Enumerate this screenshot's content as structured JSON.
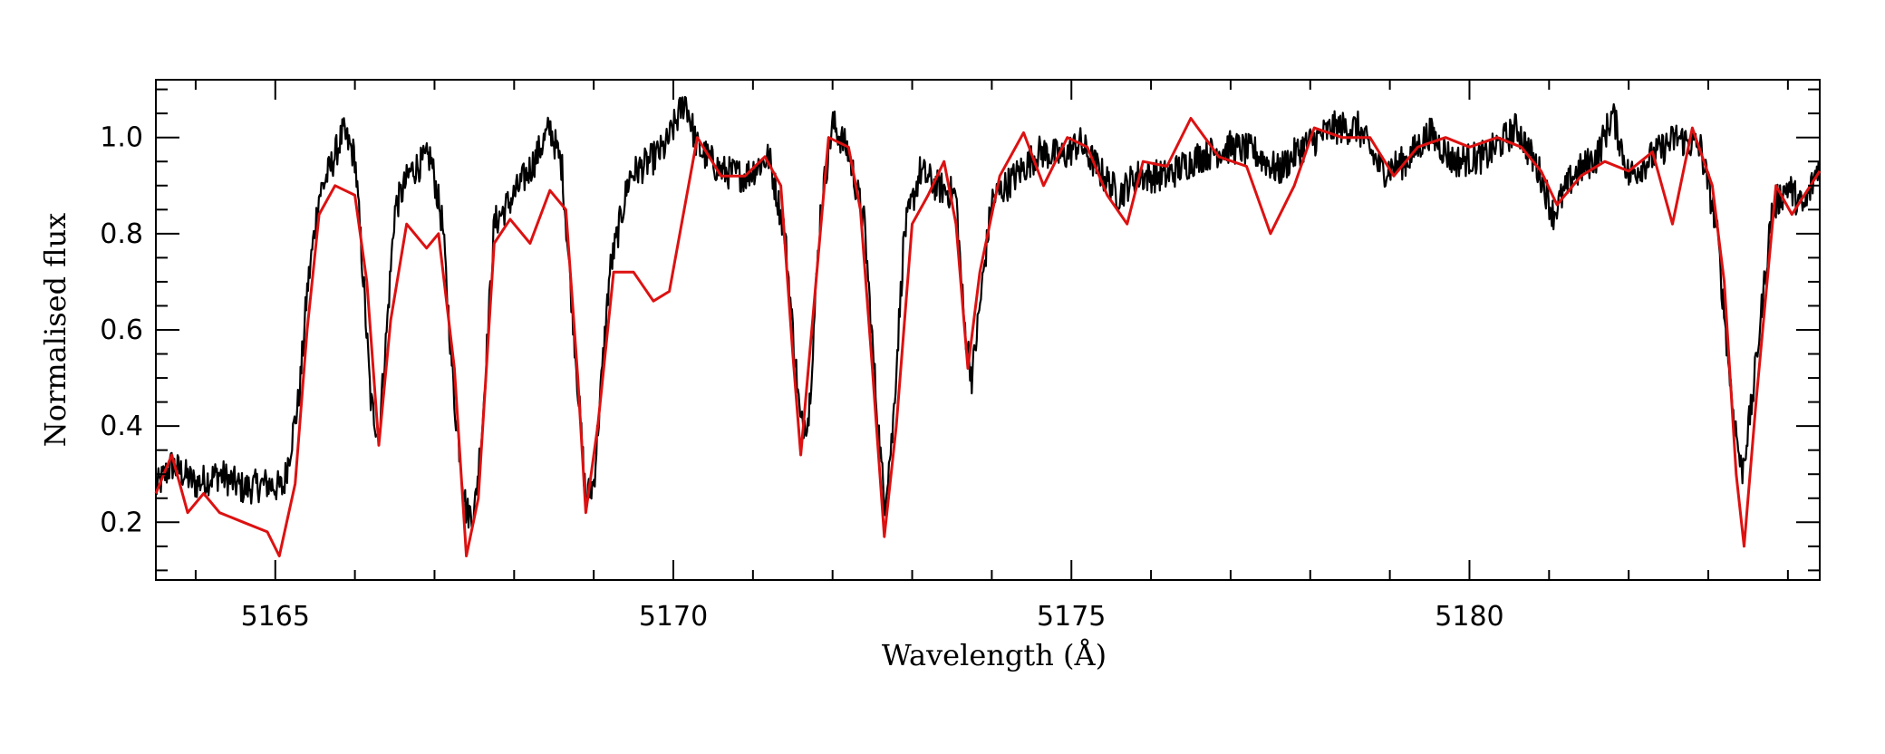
{
  "chart_data": {
    "type": "line",
    "xlabel": "Wavelength (Å)",
    "ylabel": "Normalised flux",
    "xlim": [
      5163.5,
      5184.4
    ],
    "ylim": [
      0.08,
      1.12
    ],
    "x_ticks": [
      5165,
      5170,
      5175,
      5180
    ],
    "y_ticks": [
      0.2,
      0.4,
      0.6,
      0.8,
      1.0
    ],
    "x_tick_labels": [
      "5165",
      "5170",
      "5175",
      "5180"
    ],
    "y_tick_labels": [
      "0.2",
      "0.4",
      "0.6",
      "0.8",
      "1.0"
    ],
    "grid": false,
    "legend": "none",
    "series": [
      {
        "color": "#000000",
        "noise": 0.035,
        "points": [
          [
            5163.5,
            0.27
          ],
          [
            5163.7,
            0.32
          ],
          [
            5164.0,
            0.28
          ],
          [
            5164.3,
            0.3
          ],
          [
            5164.6,
            0.27
          ],
          [
            5164.9,
            0.28
          ],
          [
            5165.1,
            0.27
          ],
          [
            5165.3,
            0.46
          ],
          [
            5165.4,
            0.68
          ],
          [
            5165.55,
            0.88
          ],
          [
            5165.7,
            0.94
          ],
          [
            5165.85,
            1.01
          ],
          [
            5166.0,
            0.96
          ],
          [
            5166.1,
            0.72
          ],
          [
            5166.2,
            0.45
          ],
          [
            5166.3,
            0.38
          ],
          [
            5166.4,
            0.6
          ],
          [
            5166.5,
            0.85
          ],
          [
            5166.7,
            0.93
          ],
          [
            5166.95,
            0.96
          ],
          [
            5167.1,
            0.82
          ],
          [
            5167.25,
            0.45
          ],
          [
            5167.4,
            0.22
          ],
          [
            5167.5,
            0.22
          ],
          [
            5167.6,
            0.4
          ],
          [
            5167.75,
            0.82
          ],
          [
            5168.0,
            0.88
          ],
          [
            5168.25,
            0.95
          ],
          [
            5168.45,
            1.02
          ],
          [
            5168.6,
            0.94
          ],
          [
            5168.75,
            0.6
          ],
          [
            5168.9,
            0.25
          ],
          [
            5169.0,
            0.28
          ],
          [
            5169.2,
            0.72
          ],
          [
            5169.45,
            0.92
          ],
          [
            5169.7,
            0.95
          ],
          [
            5169.9,
            0.98
          ],
          [
            5170.15,
            1.08
          ],
          [
            5170.3,
            0.98
          ],
          [
            5170.6,
            0.93
          ],
          [
            5170.9,
            0.92
          ],
          [
            5171.2,
            0.96
          ],
          [
            5171.4,
            0.8
          ],
          [
            5171.6,
            0.4
          ],
          [
            5171.7,
            0.42
          ],
          [
            5171.85,
            0.85
          ],
          [
            5172.0,
            1.03
          ],
          [
            5172.2,
            0.97
          ],
          [
            5172.4,
            0.82
          ],
          [
            5172.55,
            0.45
          ],
          [
            5172.65,
            0.24
          ],
          [
            5172.75,
            0.38
          ],
          [
            5172.9,
            0.8
          ],
          [
            5173.1,
            0.93
          ],
          [
            5173.3,
            0.9
          ],
          [
            5173.55,
            0.88
          ],
          [
            5173.65,
            0.62
          ],
          [
            5173.75,
            0.5
          ],
          [
            5173.85,
            0.65
          ],
          [
            5174.0,
            0.87
          ],
          [
            5174.3,
            0.92
          ],
          [
            5174.6,
            0.97
          ],
          [
            5174.9,
            0.96
          ],
          [
            5175.1,
            0.99
          ],
          [
            5175.4,
            0.92
          ],
          [
            5175.6,
            0.88
          ],
          [
            5175.8,
            0.92
          ],
          [
            5176.2,
            0.92
          ],
          [
            5176.6,
            0.96
          ],
          [
            5177.0,
            0.98
          ],
          [
            5177.3,
            0.97
          ],
          [
            5177.6,
            0.93
          ],
          [
            5177.9,
            0.98
          ],
          [
            5178.3,
            1.02
          ],
          [
            5178.6,
            1.02
          ],
          [
            5178.9,
            0.93
          ],
          [
            5179.2,
            0.95
          ],
          [
            5179.5,
            1.01
          ],
          [
            5179.8,
            0.95
          ],
          [
            5180.2,
            0.96
          ],
          [
            5180.6,
            1.02
          ],
          [
            5180.9,
            0.92
          ],
          [
            5181.05,
            0.84
          ],
          [
            5181.3,
            0.92
          ],
          [
            5181.6,
            0.96
          ],
          [
            5181.8,
            1.05
          ],
          [
            5182.0,
            0.92
          ],
          [
            5182.3,
            0.96
          ],
          [
            5182.6,
            1.0
          ],
          [
            5182.9,
            0.98
          ],
          [
            5183.1,
            0.82
          ],
          [
            5183.3,
            0.45
          ],
          [
            5183.42,
            0.3
          ],
          [
            5183.55,
            0.45
          ],
          [
            5183.8,
            0.85
          ],
          [
            5184.0,
            0.9
          ],
          [
            5184.2,
            0.85
          ],
          [
            5184.4,
            0.95
          ]
        ]
      },
      {
        "color": "#dd1111",
        "points": [
          [
            5163.5,
            0.26
          ],
          [
            5163.7,
            0.34
          ],
          [
            5163.9,
            0.22
          ],
          [
            5164.1,
            0.26
          ],
          [
            5164.3,
            0.22
          ],
          [
            5164.6,
            0.2
          ],
          [
            5164.9,
            0.18
          ],
          [
            5165.05,
            0.13
          ],
          [
            5165.25,
            0.28
          ],
          [
            5165.4,
            0.6
          ],
          [
            5165.55,
            0.84
          ],
          [
            5165.75,
            0.9
          ],
          [
            5166.0,
            0.88
          ],
          [
            5166.15,
            0.7
          ],
          [
            5166.3,
            0.36
          ],
          [
            5166.45,
            0.62
          ],
          [
            5166.65,
            0.82
          ],
          [
            5166.9,
            0.77
          ],
          [
            5167.05,
            0.8
          ],
          [
            5167.25,
            0.52
          ],
          [
            5167.4,
            0.13
          ],
          [
            5167.55,
            0.25
          ],
          [
            5167.75,
            0.78
          ],
          [
            5167.95,
            0.83
          ],
          [
            5168.2,
            0.78
          ],
          [
            5168.45,
            0.89
          ],
          [
            5168.65,
            0.85
          ],
          [
            5168.8,
            0.5
          ],
          [
            5168.9,
            0.22
          ],
          [
            5169.05,
            0.4
          ],
          [
            5169.25,
            0.72
          ],
          [
            5169.5,
            0.72
          ],
          [
            5169.75,
            0.66
          ],
          [
            5169.95,
            0.68
          ],
          [
            5170.3,
            1.0
          ],
          [
            5170.6,
            0.92
          ],
          [
            5170.9,
            0.92
          ],
          [
            5171.15,
            0.96
          ],
          [
            5171.35,
            0.9
          ],
          [
            5171.5,
            0.55
          ],
          [
            5171.6,
            0.34
          ],
          [
            5171.75,
            0.62
          ],
          [
            5171.95,
            1.0
          ],
          [
            5172.2,
            0.98
          ],
          [
            5172.35,
            0.85
          ],
          [
            5172.5,
            0.52
          ],
          [
            5172.65,
            0.17
          ],
          [
            5172.8,
            0.4
          ],
          [
            5173.0,
            0.82
          ],
          [
            5173.2,
            0.88
          ],
          [
            5173.4,
            0.95
          ],
          [
            5173.55,
            0.82
          ],
          [
            5173.7,
            0.52
          ],
          [
            5173.85,
            0.72
          ],
          [
            5174.1,
            0.92
          ],
          [
            5174.4,
            1.01
          ],
          [
            5174.65,
            0.9
          ],
          [
            5174.95,
            1.0
          ],
          [
            5175.2,
            0.98
          ],
          [
            5175.45,
            0.88
          ],
          [
            5175.7,
            0.82
          ],
          [
            5175.9,
            0.95
          ],
          [
            5176.2,
            0.94
          ],
          [
            5176.5,
            1.04
          ],
          [
            5176.85,
            0.96
          ],
          [
            5177.2,
            0.94
          ],
          [
            5177.5,
            0.8
          ],
          [
            5177.8,
            0.9
          ],
          [
            5178.05,
            1.02
          ],
          [
            5178.4,
            1.0
          ],
          [
            5178.75,
            1.0
          ],
          [
            5179.05,
            0.92
          ],
          [
            5179.35,
            0.98
          ],
          [
            5179.7,
            1.0
          ],
          [
            5180.0,
            0.98
          ],
          [
            5180.35,
            1.0
          ],
          [
            5180.65,
            0.98
          ],
          [
            5180.9,
            0.93
          ],
          [
            5181.1,
            0.86
          ],
          [
            5181.4,
            0.92
          ],
          [
            5181.7,
            0.95
          ],
          [
            5182.0,
            0.93
          ],
          [
            5182.3,
            0.97
          ],
          [
            5182.55,
            0.82
          ],
          [
            5182.8,
            1.02
          ],
          [
            5183.05,
            0.9
          ],
          [
            5183.2,
            0.7
          ],
          [
            5183.35,
            0.3
          ],
          [
            5183.45,
            0.15
          ],
          [
            5183.6,
            0.45
          ],
          [
            5183.85,
            0.9
          ],
          [
            5184.05,
            0.84
          ],
          [
            5184.4,
            0.93
          ]
        ]
      }
    ]
  }
}
